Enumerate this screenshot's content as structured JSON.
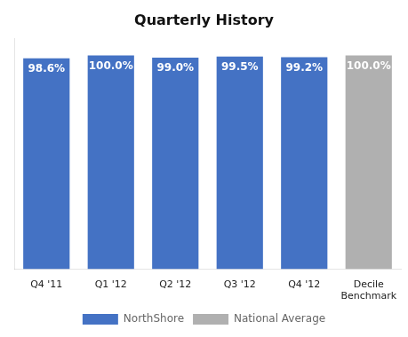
{
  "chart_data": {
    "type": "bar",
    "title": "Quarterly History",
    "categories": [
      "Q4 '11",
      "Q1 '12",
      "Q2 '12",
      "Q3 '12",
      "Q4 '12",
      "Decile\nBenchmark"
    ],
    "series": [
      {
        "name": "NorthShore",
        "color": "#4472c4",
        "values": [
          98.6,
          100.0,
          99.0,
          99.5,
          99.2,
          null
        ],
        "value_labels": [
          "98.6%",
          "100.0%",
          "99.0%",
          "99.5%",
          "99.2%",
          null
        ]
      },
      {
        "name": "National Average",
        "color": "#b0b0b0",
        "values": [
          null,
          null,
          null,
          null,
          null,
          100.0
        ],
        "value_labels": [
          null,
          null,
          null,
          null,
          null,
          "100.0%"
        ]
      }
    ],
    "ylim": [
      0,
      108
    ],
    "yticks": [],
    "grid": false,
    "tick_labels": "x",
    "data_labels": true,
    "legend": "bottom"
  }
}
